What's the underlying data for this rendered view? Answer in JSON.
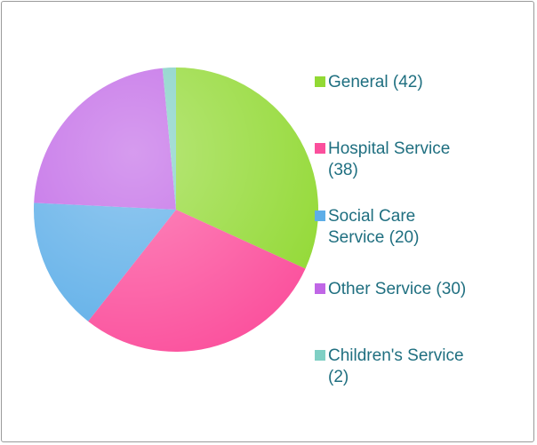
{
  "chart_data": {
    "type": "pie",
    "categories": [
      "General (42)",
      "Hospital Service (38)",
      "Social Care Service (20)",
      "Other Service (30)",
      "Children's Service (2)"
    ],
    "values": [
      42,
      38,
      20,
      30,
      2
    ],
    "colors": [
      "#92d934",
      "#fb4f9c",
      "#5daee8",
      "#c066e6",
      "#7fcfc4"
    ],
    "legend": "right"
  }
}
